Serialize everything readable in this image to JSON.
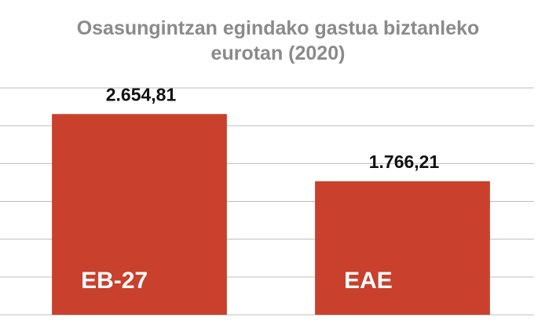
{
  "chart_data": {
    "type": "bar",
    "title": "Osasungintzan egindako gastua biztanleko eurotan (2020)",
    "categories": [
      "EB-27",
      "EAE"
    ],
    "values": [
      2654.81,
      1766.21
    ],
    "value_labels": [
      "2.654,81",
      "1.766,21"
    ],
    "color": "#c9402d",
    "ylim": [
      0,
      3000
    ],
    "yticks": [
      0,
      500,
      1000,
      1500,
      2000,
      2500,
      3000
    ],
    "grid": true
  }
}
